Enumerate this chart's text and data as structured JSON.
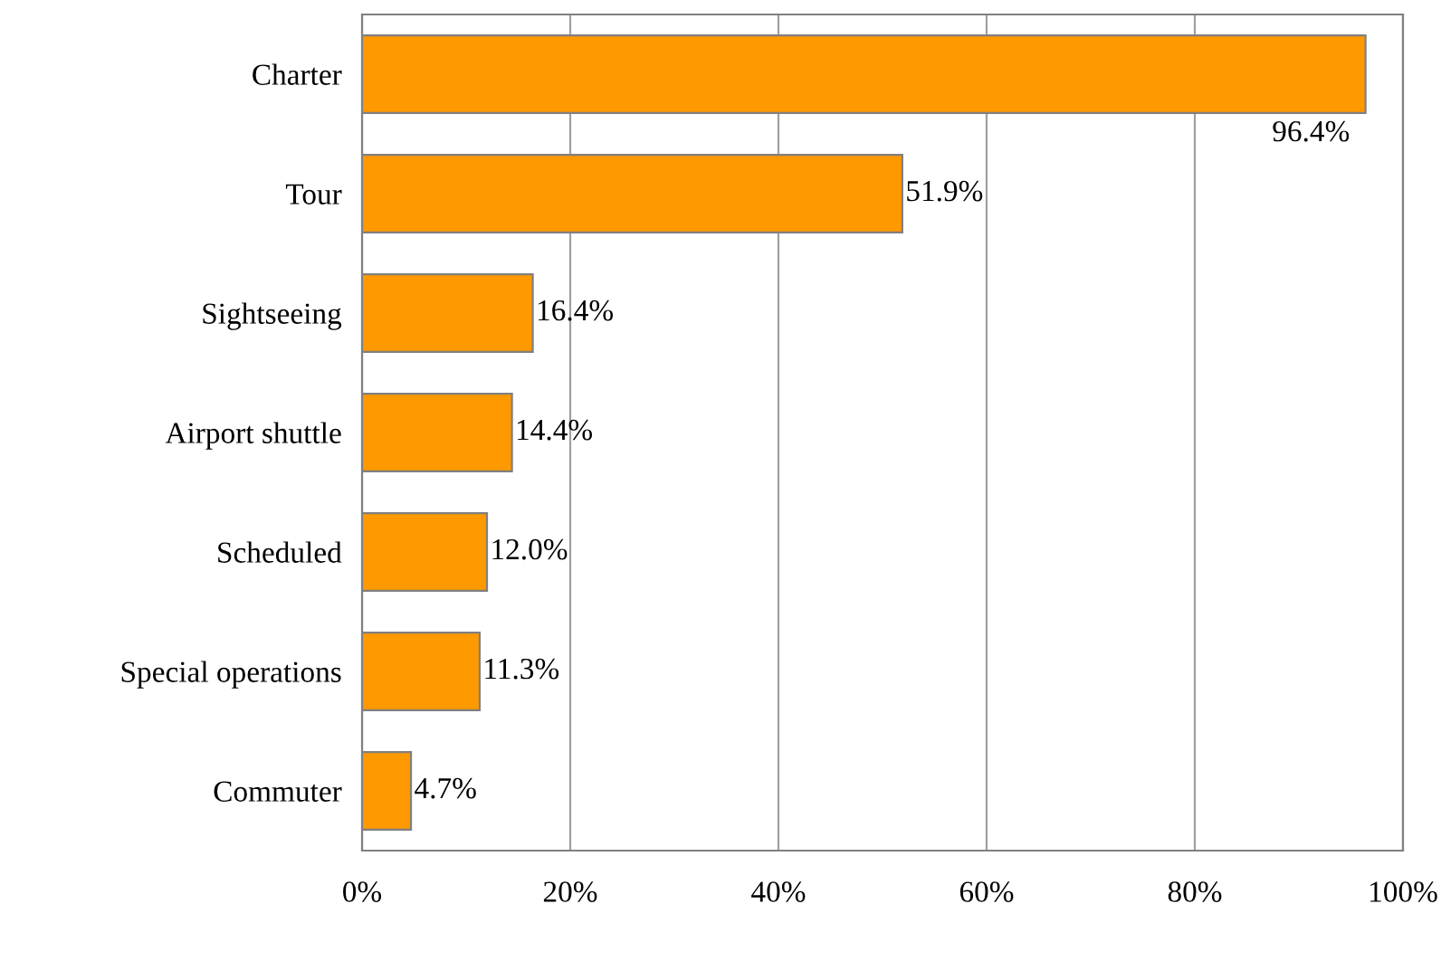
{
  "chart_data": {
    "type": "bar",
    "orientation": "horizontal",
    "categories": [
      "Charter",
      "Tour",
      "Sightseeing",
      "Airport shuttle",
      "Scheduled",
      "Special operations",
      "Commuter"
    ],
    "values": [
      96.4,
      51.9,
      16.4,
      14.4,
      12.0,
      11.3,
      4.7
    ],
    "color": "#ff9900",
    "xlim": [
      0,
      100
    ],
    "xticks": [
      {
        "value": 0,
        "label": "0%"
      },
      {
        "value": 20,
        "label": "20%"
      },
      {
        "value": 40,
        "label": "40%"
      },
      {
        "value": 60,
        "label": "60%"
      },
      {
        "value": 80,
        "label": "80%"
      },
      {
        "value": 100,
        "label": "100%"
      }
    ],
    "value_labels": [
      "96.4%",
      "51.9%",
      "16.4%",
      "14.4%",
      "12.0%",
      "11.3%",
      "4.7%"
    ],
    "grid": "x"
  }
}
